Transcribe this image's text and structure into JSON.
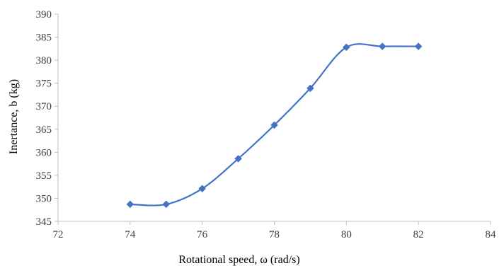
{
  "chart_data": {
    "type": "scatter",
    "title": "",
    "xlabel": "Rotational speed, ω (rad/s)",
    "ylabel": "Inertance, b (kg)",
    "xlim": [
      72,
      84
    ],
    "ylim": [
      345,
      390
    ],
    "x_ticks": [
      72,
      74,
      76,
      78,
      80,
      82,
      84
    ],
    "y_ticks": [
      345,
      350,
      355,
      360,
      365,
      370,
      375,
      380,
      385,
      390
    ],
    "grid": false,
    "legend": "none",
    "line_style": "smoothed",
    "marker": "diamond",
    "color": "#4472C4",
    "series": [
      {
        "x": [
          74,
          75,
          76,
          77,
          78,
          79,
          80,
          81,
          82
        ],
        "y": [
          348.7,
          348.7,
          352.1,
          358.6,
          365.9,
          373.9,
          382.8,
          383.0,
          383.0
        ]
      }
    ]
  }
}
